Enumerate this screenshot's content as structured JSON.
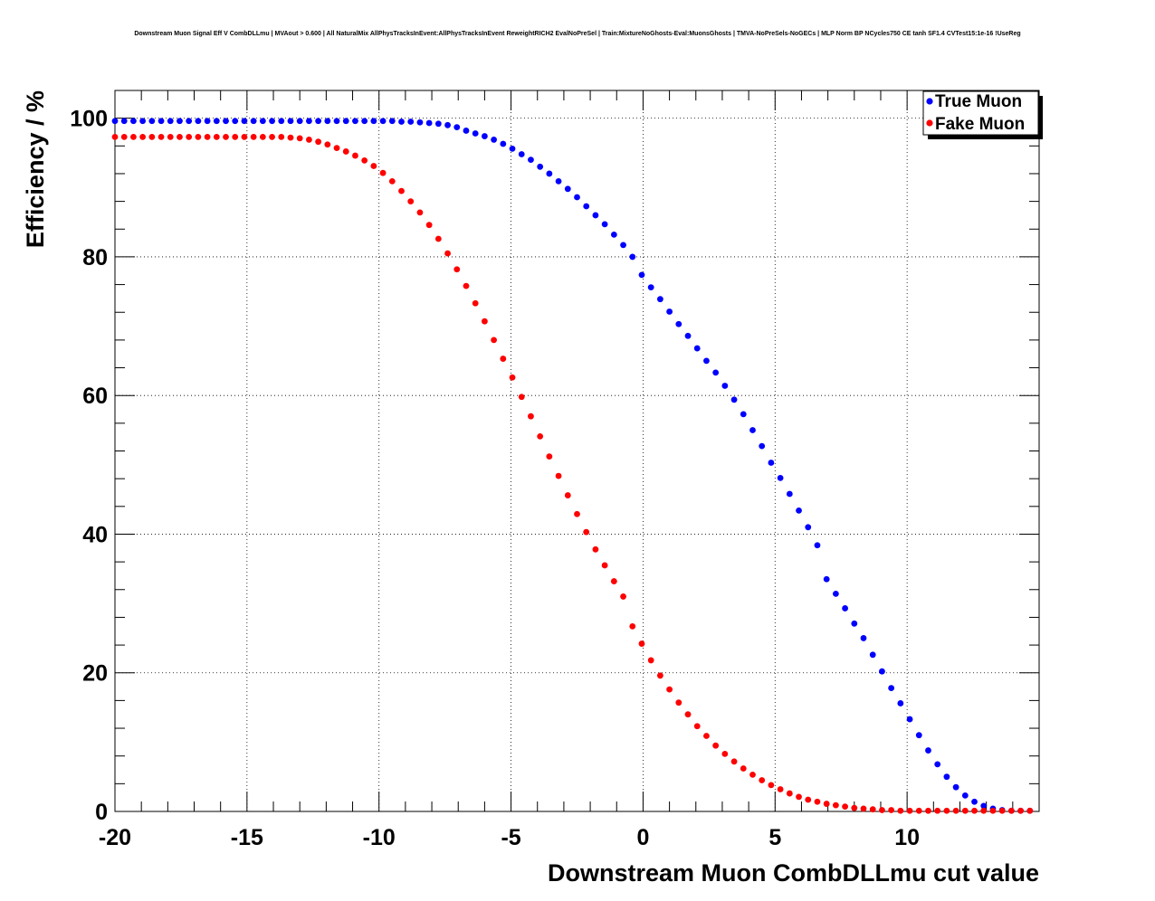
{
  "title": "Downstream Muon Signal Eff V CombDLLmu | MVAout > 0.600 | All NaturalMix AllPhysTracksInEvent:AllPhysTracksInEvent ReweightRICH2 EvalNoPreSel | Train:MixtureNoGhosts-Eval:MuonsGhosts | TMVA-NoPreSels-NoGECs | MLP Norm BP NCycles750 CE tanh SF1.4 CVTest15:1e-16 !UseReg",
  "chart_data": {
    "type": "scatter",
    "title": "Downstream Muon Signal Eff V CombDLLmu | MVAout > 0.600 | All NaturalMix AllPhysTracksInEvent:AllPhysTracksInEvent ReweightRICH2 EvalNoPreSel | Train:MixtureNoGhosts-Eval:MuonsGhosts | TMVA-NoPreSels-NoGECs | MLP Norm BP NCycles750 CE tanh SF1.4 CVTest15:1e-16 !UseReg",
    "xlabel": "Downstream Muon CombDLLmu cut value",
    "ylabel": "Efficiency / %",
    "xlim": [
      -20,
      15
    ],
    "ylim": [
      0,
      104
    ],
    "xticks": [
      -20,
      -15,
      -10,
      -5,
      0,
      5,
      10
    ],
    "yticks": [
      0,
      20,
      40,
      60,
      80,
      100
    ],
    "grid": true,
    "legend_position": "top-right",
    "x": [
      -20.0,
      -19.65,
      -19.3,
      -18.95,
      -18.6,
      -18.25,
      -17.9,
      -17.55,
      -17.2,
      -16.85,
      -16.5,
      -16.15,
      -15.8,
      -15.45,
      -15.1,
      -14.75,
      -14.4,
      -14.05,
      -13.7,
      -13.35,
      -13.0,
      -12.65,
      -12.3,
      -11.95,
      -11.6,
      -11.25,
      -10.9,
      -10.55,
      -10.2,
      -9.85,
      -9.5,
      -9.15,
      -8.8,
      -8.45,
      -8.1,
      -7.75,
      -7.4,
      -7.05,
      -6.7,
      -6.35,
      -6.0,
      -5.65,
      -5.3,
      -4.95,
      -4.6,
      -4.25,
      -3.9,
      -3.55,
      -3.2,
      -2.85,
      -2.5,
      -2.15,
      -1.8,
      -1.45,
      -1.1,
      -0.75,
      -0.4,
      -0.05,
      0.3,
      0.65,
      1.0,
      1.35,
      1.7,
      2.05,
      2.4,
      2.75,
      3.1,
      3.45,
      3.8,
      4.15,
      4.5,
      4.85,
      5.2,
      5.55,
      5.9,
      6.25,
      6.6,
      6.95,
      7.3,
      7.65,
      8.0,
      8.35,
      8.7,
      9.05,
      9.4,
      9.75,
      10.1,
      10.45,
      10.8,
      11.15,
      11.5,
      11.85,
      12.2,
      12.55,
      12.9,
      13.25,
      13.6,
      13.95,
      14.3,
      14.65
    ],
    "series": [
      {
        "name": "True Muon",
        "color": "#0000ff",
        "values": [
          99.6,
          99.6,
          99.6,
          99.6,
          99.6,
          99.6,
          99.6,
          99.6,
          99.6,
          99.6,
          99.6,
          99.6,
          99.6,
          99.6,
          99.6,
          99.6,
          99.6,
          99.6,
          99.6,
          99.6,
          99.6,
          99.6,
          99.6,
          99.6,
          99.6,
          99.6,
          99.6,
          99.6,
          99.6,
          99.6,
          99.6,
          99.5,
          99.5,
          99.4,
          99.3,
          99.2,
          99.0,
          98.7,
          98.2,
          97.8,
          97.4,
          96.9,
          96.3,
          95.6,
          94.8,
          94.0,
          93.0,
          92.0,
          90.9,
          89.8,
          88.6,
          87.3,
          86.0,
          84.7,
          83.2,
          81.7,
          80.0,
          77.4,
          75.6,
          73.9,
          72.1,
          70.3,
          68.6,
          66.8,
          65.0,
          63.3,
          61.4,
          59.4,
          57.3,
          55.0,
          52.7,
          50.3,
          48.1,
          45.8,
          43.4,
          41.0,
          38.4,
          33.5,
          31.4,
          29.3,
          27.1,
          25.0,
          22.6,
          20.2,
          17.8,
          15.6,
          13.3,
          11.0,
          8.8,
          6.8,
          5.0,
          3.5,
          2.3,
          1.4,
          0.8,
          0.4,
          0.2,
          0.1,
          0.1,
          0.1
        ]
      },
      {
        "name": "Fake Muon",
        "color": "#ff0000",
        "values": [
          97.3,
          97.3,
          97.3,
          97.3,
          97.3,
          97.3,
          97.3,
          97.3,
          97.3,
          97.3,
          97.3,
          97.3,
          97.3,
          97.3,
          97.3,
          97.3,
          97.3,
          97.3,
          97.3,
          97.2,
          97.1,
          96.9,
          96.6,
          96.2,
          95.7,
          95.2,
          94.6,
          93.9,
          93.1,
          92.1,
          90.9,
          89.5,
          88.0,
          86.4,
          84.6,
          82.6,
          80.5,
          78.2,
          75.8,
          73.3,
          70.7,
          68.0,
          65.3,
          62.6,
          59.8,
          57.0,
          54.1,
          51.2,
          48.4,
          45.6,
          42.9,
          40.3,
          37.8,
          35.5,
          33.2,
          31.0,
          26.7,
          24.2,
          21.8,
          19.6,
          17.6,
          15.7,
          14.0,
          12.3,
          10.9,
          9.5,
          8.3,
          7.2,
          6.2,
          5.3,
          4.5,
          3.8,
          3.2,
          2.6,
          2.1,
          1.7,
          1.4,
          1.1,
          0.9,
          0.7,
          0.5,
          0.4,
          0.3,
          0.2,
          0.2,
          0.1,
          0.1,
          0.1,
          0.1,
          0.1,
          0.1,
          0.1,
          0.1,
          0.1,
          0.1,
          0.1,
          0.1,
          0.1,
          0.1,
          0.1
        ]
      }
    ]
  }
}
